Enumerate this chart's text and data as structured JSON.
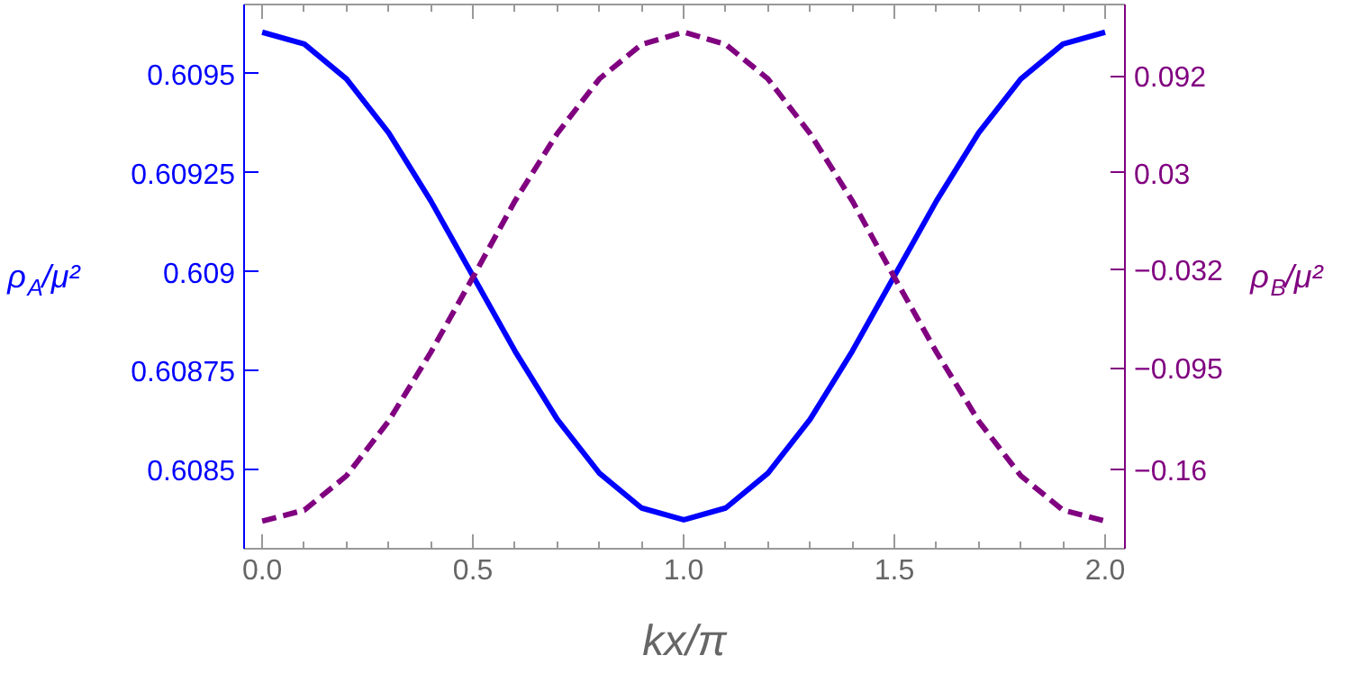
{
  "chart_data": {
    "type": "line",
    "xlabel": "kx/π",
    "ylabel": "ρ$_{A}$/μ²",
    "y2label": "ρ$_{B}$/μ²",
    "x": [
      0,
      0.1,
      0.2,
      0.3,
      0.4,
      0.5,
      0.6,
      0.7,
      0.8,
      0.9,
      1.0,
      1.1,
      1.2,
      1.3,
      1.4,
      1.5,
      1.6,
      1.7,
      1.8,
      1.9,
      2.0
    ],
    "series": [
      {
        "color": "#0000ff",
        "line_style": "solid",
        "values": [
          0.609605,
          0.609575,
          0.609487,
          0.609351,
          0.609179,
          0.608989,
          0.608799,
          0.608627,
          0.608491,
          0.608403,
          0.608373,
          0.608403,
          0.608491,
          0.608627,
          0.608799,
          0.608989,
          0.609179,
          0.609351,
          0.609487,
          0.609575,
          0.609605
        ]
      },
      {
        "color": "#800080",
        "line_style": "dashed",
        "axis": "y2",
        "values": [
          -0.193,
          -0.186,
          -0.164,
          -0.129,
          -0.085,
          -0.037,
          0.012,
          0.055,
          0.09,
          0.112,
          0.12,
          0.112,
          0.09,
          0.055,
          0.012,
          -0.037,
          -0.085,
          -0.129,
          -0.164,
          -0.186,
          -0.193
        ]
      }
    ],
    "xlim": [
      -0.043,
      2.047
    ],
    "xticks": [
      {
        "value": 0,
        "label": "0.0"
      },
      0.5,
      {
        "value": 1,
        "label": "1.0"
      },
      1.5,
      {
        "value": 2,
        "label": "2.0"
      }
    ],
    "ylim": [
      0.6083,
      0.609675
    ],
    "yticks": [
      0.6085,
      {
        "value": 0.60875,
        "label": "0.60875"
      },
      0.609,
      {
        "value": 0.60925,
        "label": "0.60925"
      },
      0.6095
    ],
    "y2lim": [
      -0.2107,
      0.1376
    ],
    "y2ticks": [
      -0.16,
      -0.095,
      -0.032,
      0.03,
      0.092
    ],
    "grid": false
  }
}
